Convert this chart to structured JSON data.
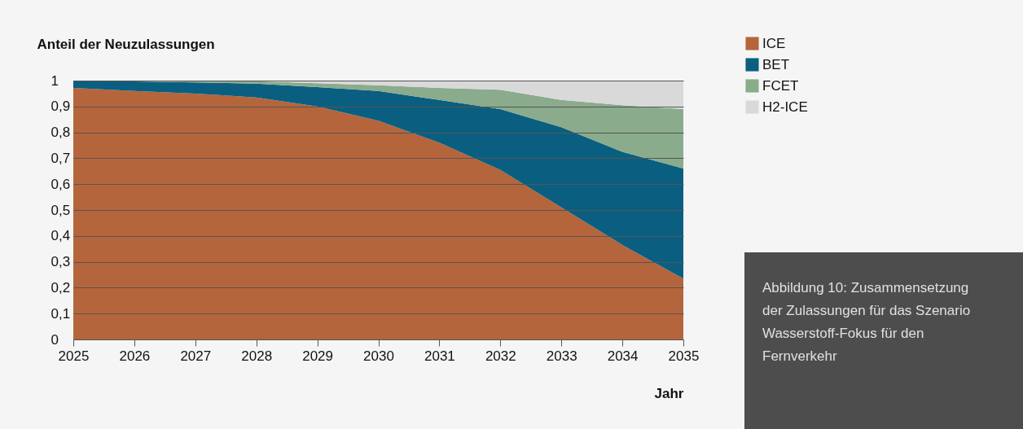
{
  "chart_data": {
    "type": "area",
    "stacked": true,
    "ylabel": "Anteil der Neuzulassungen",
    "xlabel": "Jahr",
    "x": [
      2025,
      2026,
      2027,
      2028,
      2029,
      2030,
      2031,
      2032,
      2033,
      2034,
      2035
    ],
    "xlim": [
      2025,
      2035
    ],
    "xticks": [
      2025,
      2026,
      2027,
      2028,
      2029,
      2030,
      2031,
      2032,
      2033,
      2034,
      2035
    ],
    "ylim": [
      0,
      1
    ],
    "yticks": [
      0,
      {
        "value": 0.1,
        "label": "0,1"
      },
      {
        "value": 0.2,
        "label": "0,2"
      },
      {
        "value": 0.3,
        "label": "0,3"
      },
      {
        "value": 0.4,
        "label": "0,4"
      },
      {
        "value": 0.5,
        "label": "0,5"
      },
      {
        "value": 0.6,
        "label": "0,6"
      },
      {
        "value": 0.7,
        "label": "0,7"
      },
      {
        "value": 0.8,
        "label": "0,8"
      },
      {
        "value": 0.9,
        "label": "0,9"
      },
      1
    ],
    "grid": "y",
    "legend": "top right",
    "series": [
      {
        "name": "ICE",
        "color": "#b5653b",
        "values": [
          0.972,
          0.96,
          0.95,
          0.935,
          0.9,
          0.845,
          0.76,
          0.655,
          0.51,
          0.365,
          0.235
        ]
      },
      {
        "name": "BET",
        "color": "#0a5f80",
        "values": [
          0.028,
          0.037,
          0.043,
          0.053,
          0.075,
          0.115,
          0.165,
          0.235,
          0.31,
          0.36,
          0.425
        ]
      },
      {
        "name": "FCET",
        "color": "#8aab8c",
        "values": [
          0,
          0.003,
          0.007,
          0.01,
          0.015,
          0.022,
          0.047,
          0.075,
          0.105,
          0.18,
          0.23
        ]
      },
      {
        "name": "H2-ICE",
        "color": "#d9d9d9",
        "values": [
          0,
          0,
          0,
          0.002,
          0.01,
          0.018,
          0.028,
          0.035,
          0.075,
          0.095,
          0.11
        ]
      }
    ],
    "annotations": [
      "Abbildung 10: Zusammensetzung der Zulassungen für das Szenario Wasserstoff-Fokus für den Fernverkehr"
    ]
  }
}
